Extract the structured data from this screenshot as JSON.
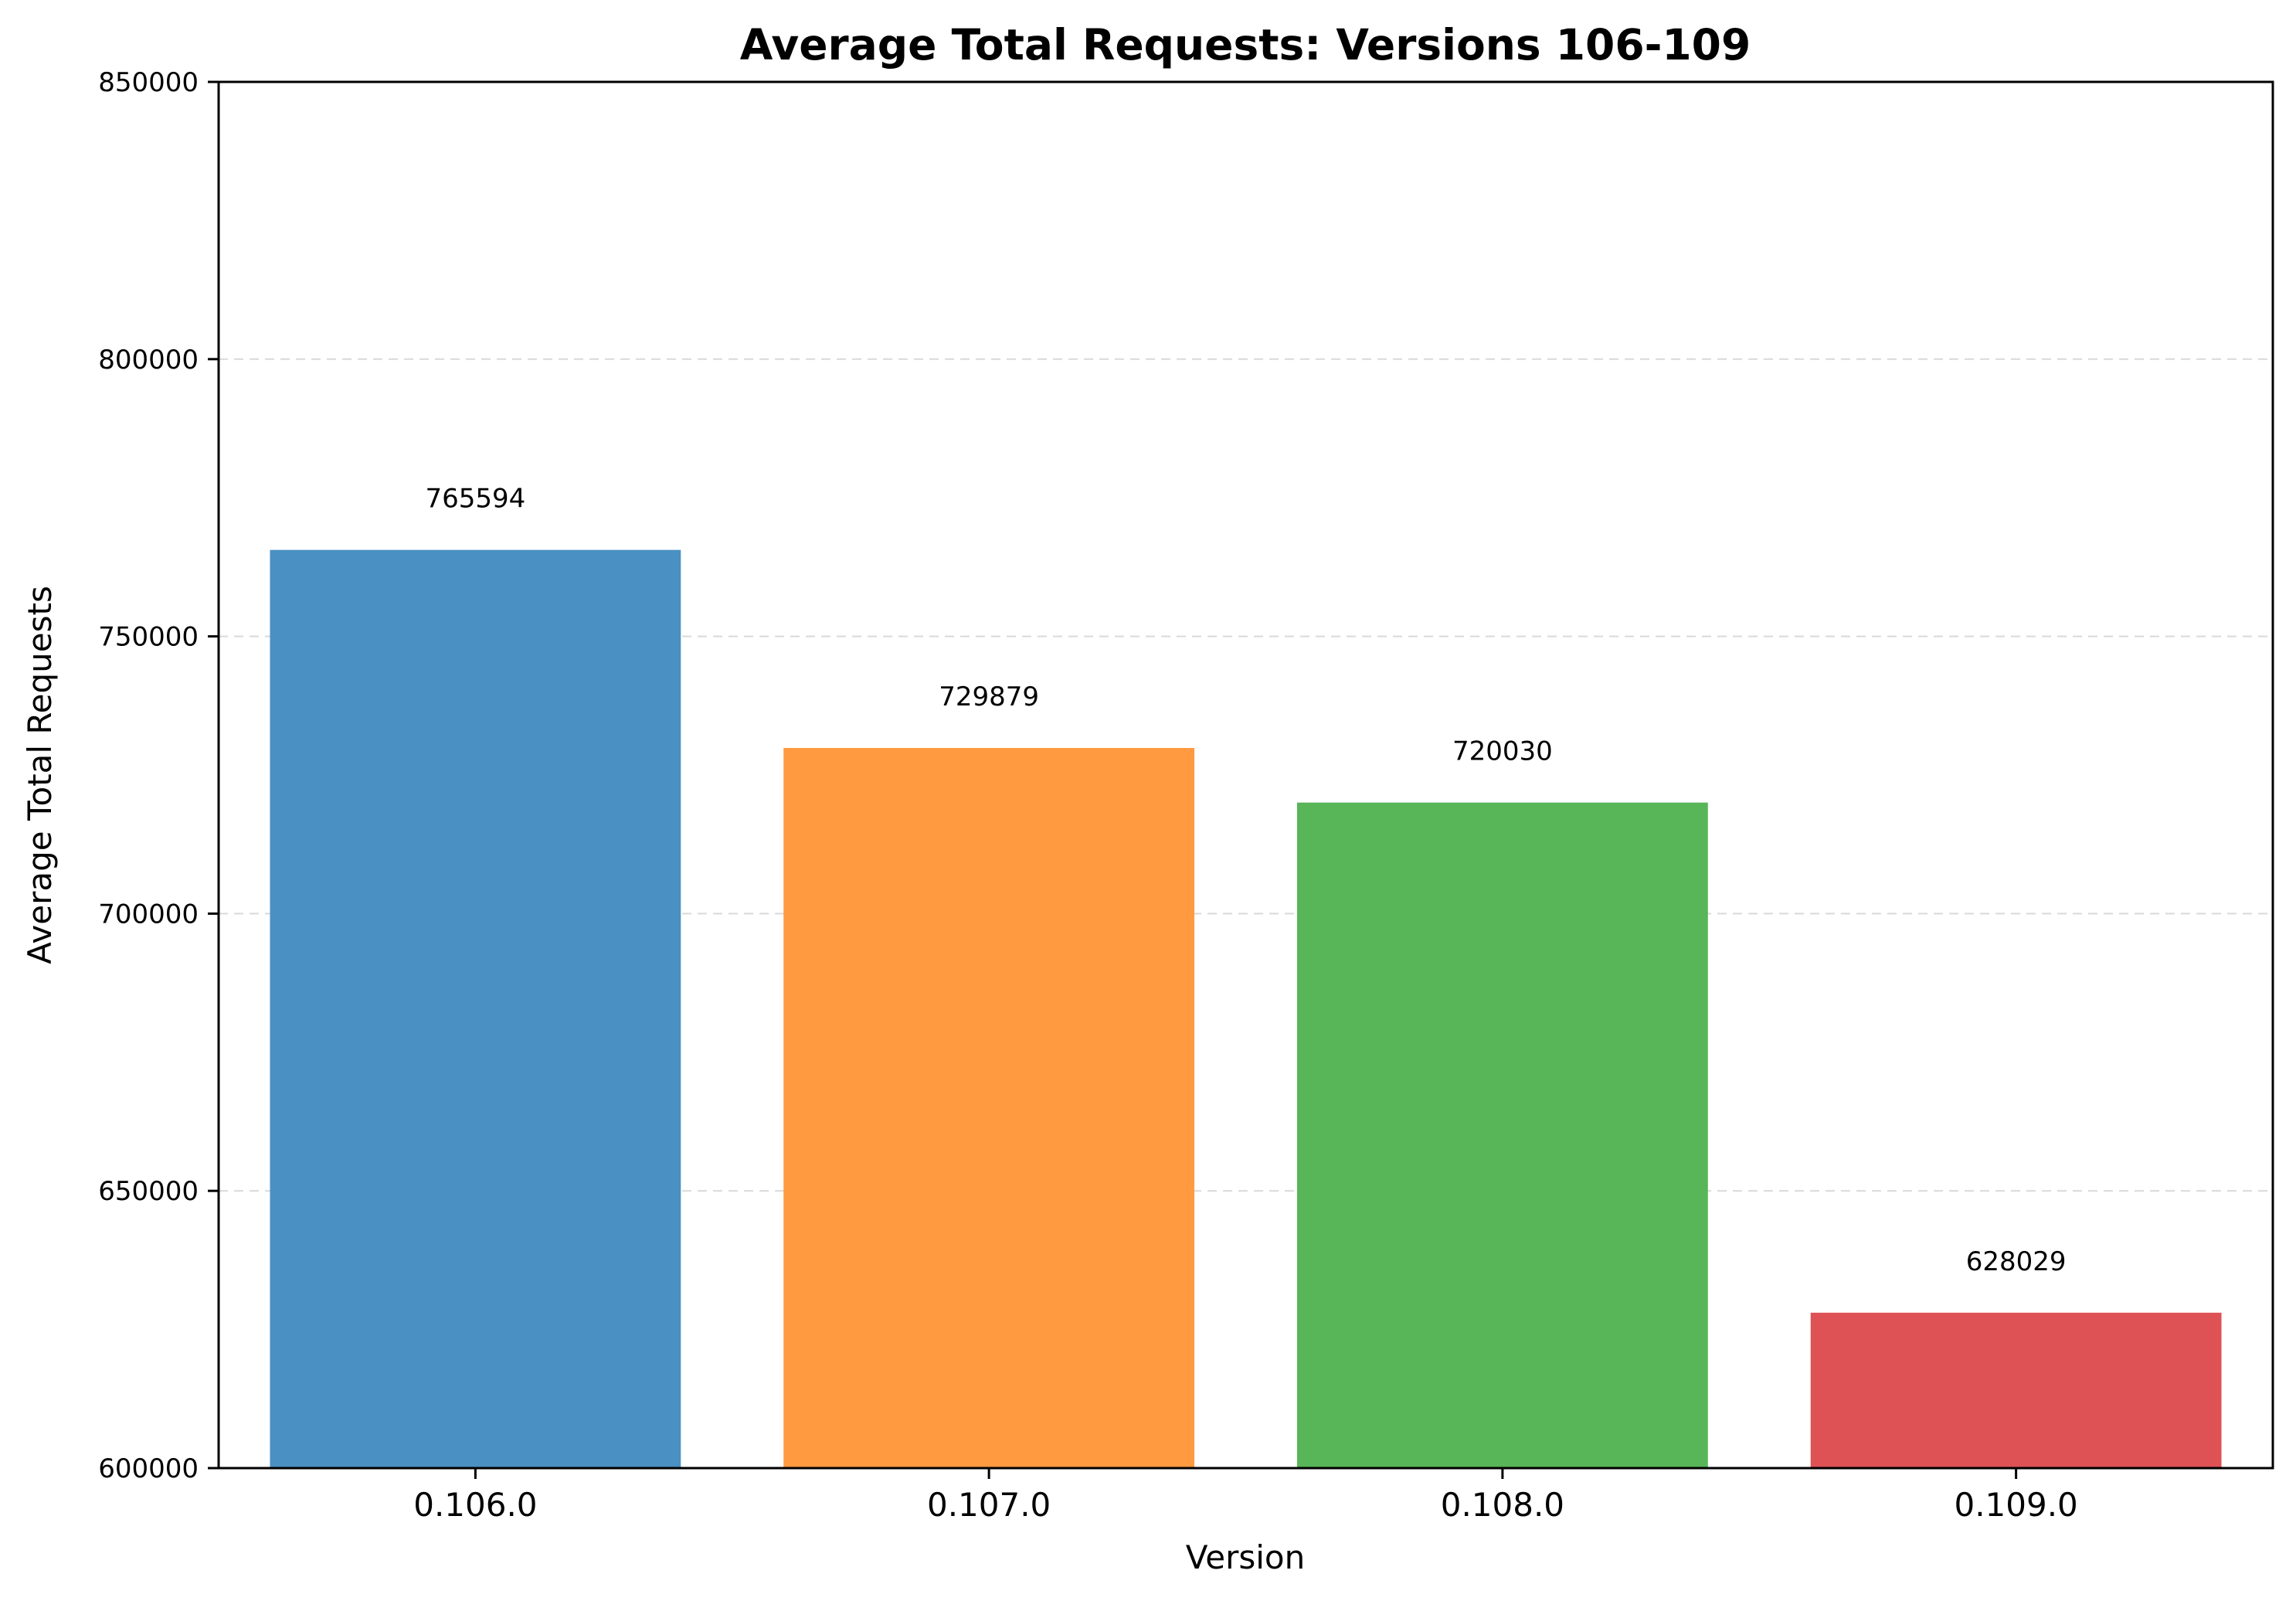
{
  "chart_data": {
    "type": "bar",
    "title": "Average Total Requests: Versions 106-109",
    "xlabel": "Version",
    "ylabel": "Average Total Requests",
    "categories": [
      "0.106.0",
      "0.107.0",
      "0.108.0",
      "0.109.0"
    ],
    "values": [
      765594,
      729879,
      720030,
      628029
    ],
    "value_labels": [
      "765594",
      "729879",
      "720030",
      "628029"
    ],
    "colors": [
      "#4a90c2",
      "#ff9a40",
      "#58b558",
      "#de5256"
    ],
    "ylim": [
      600000,
      850000
    ],
    "yticks": [
      600000,
      650000,
      700000,
      750000,
      800000,
      850000
    ],
    "ytick_labels": [
      "600000",
      "650000",
      "700000",
      "750000",
      "800000",
      "850000"
    ],
    "grid": "y-dashed",
    "legend": "none"
  }
}
